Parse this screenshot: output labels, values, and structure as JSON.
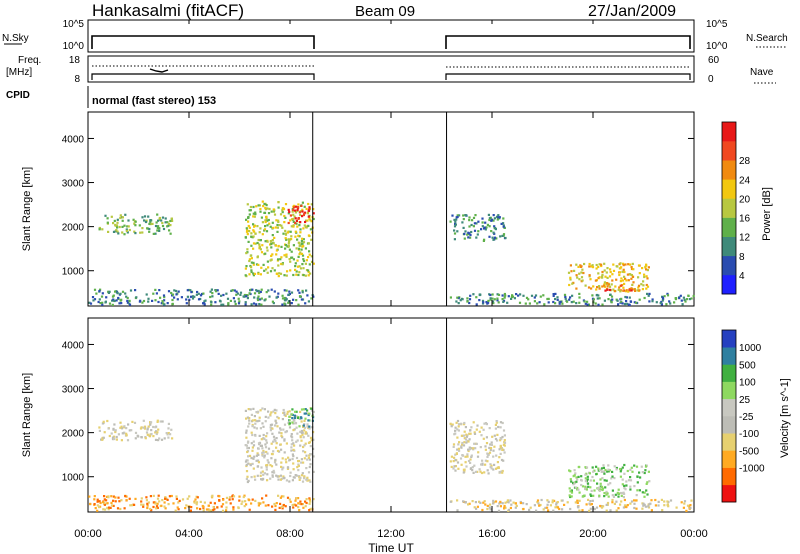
{
  "header": {
    "station": "Hankasalmi (fitACF)",
    "beam": "Beam 09",
    "date": "27/Jan/2009"
  },
  "nsky_panel": {
    "left_label": "N.Sky",
    "left_ticks": [
      "10^5",
      "10^0"
    ],
    "right_label": "N.Search",
    "right_ticks": [
      "10^5",
      "10^0"
    ]
  },
  "freq_panel": {
    "left_label_1": "Freq.",
    "left_label_2": "[MHz]",
    "left_ticks": [
      "18",
      "8"
    ],
    "right_label": "Nave",
    "right_ticks": [
      "60",
      "0"
    ]
  },
  "cpid": {
    "label": "CPID",
    "mode_text": "normal (fast stereo) 153"
  },
  "x_axis": {
    "label": "Time UT",
    "ticks": [
      "00:00",
      "04:00",
      "08:00",
      "12:00",
      "16:00",
      "20:00",
      "00:00"
    ]
  },
  "colors": {
    "power_scale": [
      "#1f20ff",
      "#2a4cb0",
      "#3f8a7a",
      "#5fb04a",
      "#b8c840",
      "#f2c810",
      "#f08a10",
      "#f04820",
      "#e81818"
    ],
    "velocity_scale": [
      "#ee1111",
      "#ff6a00",
      "#ffaa22",
      "#e6d070",
      "#bdbdb6",
      "#c8c8c0",
      "#8ed860",
      "#40b040",
      "#2f80a0",
      "#2540c0"
    ]
  },
  "chart_data": [
    {
      "type": "heatmap",
      "name_label": "Power [dB]",
      "ylabel": "Slant Range [km]",
      "xlabel": "Time UT",
      "yticks": [
        "1000",
        "2000",
        "3000",
        "4000"
      ],
      "ylim": [
        200,
        4600
      ],
      "xlim": [
        0,
        24
      ],
      "colorbar_ticks": [
        "4",
        "8",
        "12",
        "16",
        "20",
        "24",
        "28"
      ],
      "data_gap_hours": [
        8.9,
        14.2
      ],
      "regions": [
        {
          "t0": 0.4,
          "t1": 3.3,
          "r0": 1850,
          "r1": 2300,
          "level": 3
        },
        {
          "t0": 6.2,
          "t1": 8.9,
          "r0": 900,
          "r1": 2600,
          "level": 4
        },
        {
          "t0": 7.9,
          "t1": 8.9,
          "r0": 2100,
          "r1": 2500,
          "level": 8
        },
        {
          "t0": 0.0,
          "t1": 8.9,
          "r0": 250,
          "r1": 600,
          "level": 2
        },
        {
          "t0": 14.3,
          "t1": 16.5,
          "r0": 1700,
          "r1": 2300,
          "level": 2
        },
        {
          "t0": 19.0,
          "t1": 22.2,
          "r0": 550,
          "r1": 1200,
          "level": 5
        },
        {
          "t0": 20.3,
          "t1": 21.8,
          "r0": 550,
          "r1": 700,
          "level": 7
        },
        {
          "t0": 14.3,
          "t1": 24.0,
          "r0": 250,
          "r1": 500,
          "level": 2
        }
      ]
    },
    {
      "type": "heatmap",
      "name_label": "Velocity [m s^-1]",
      "ylabel": "Slant Range [km]",
      "xlabel": "Time UT",
      "yticks": [
        "1000",
        "2000",
        "3000",
        "4000"
      ],
      "ylim": [
        200,
        4600
      ],
      "xlim": [
        0,
        24
      ],
      "colorbar_ticks": [
        "1000",
        "500",
        "100",
        "25",
        "-25",
        "-100",
        "-500",
        "-1000"
      ],
      "data_gap_hours": [
        8.9,
        14.2
      ],
      "regions": [
        {
          "t0": 0.4,
          "t1": 3.3,
          "r0": 1850,
          "r1": 2300,
          "level": 4
        },
        {
          "t0": 6.2,
          "t1": 8.9,
          "r0": 900,
          "r1": 2600,
          "level": 4
        },
        {
          "t0": 7.9,
          "t1": 8.9,
          "r0": 2150,
          "r1": 2600,
          "level": 7
        },
        {
          "t0": 0.0,
          "t1": 8.9,
          "r0": 250,
          "r1": 600,
          "level": 2
        },
        {
          "t0": 14.3,
          "t1": 16.5,
          "r0": 1100,
          "r1": 2300,
          "level": 4
        },
        {
          "t0": 19.0,
          "t1": 22.2,
          "r0": 550,
          "r1": 1300,
          "level": 6
        },
        {
          "t0": 14.3,
          "t1": 24.0,
          "r0": 250,
          "r1": 500,
          "level": 3
        }
      ]
    }
  ]
}
